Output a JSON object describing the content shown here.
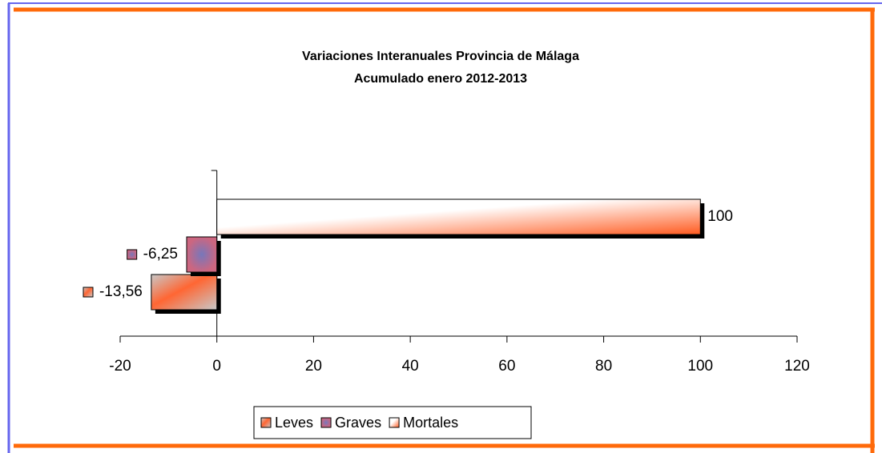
{
  "chart_data": {
    "type": "bar",
    "orientation": "horizontal",
    "title": "Variaciones Interanuales Provincia de Málaga",
    "subtitle": "Acumulado enero 2012-2013",
    "categories": [
      null
    ],
    "series": [
      {
        "name": "Leves",
        "color": "#ff6633",
        "values": [
          -13.56
        ],
        "value_labels": [
          "-13,56"
        ]
      },
      {
        "name": "Graves",
        "color": "#cc6680",
        "values": [
          -6.25
        ],
        "value_labels": [
          "-6,25"
        ]
      },
      {
        "name": "Mortales",
        "color": "#ff5a1f",
        "values": [
          100
        ],
        "value_labels": [
          "100"
        ]
      }
    ],
    "xlim": [
      -20,
      120
    ],
    "xticks": [
      -20,
      0,
      20,
      40,
      60,
      80,
      100,
      120
    ],
    "legend": "bottom"
  }
}
